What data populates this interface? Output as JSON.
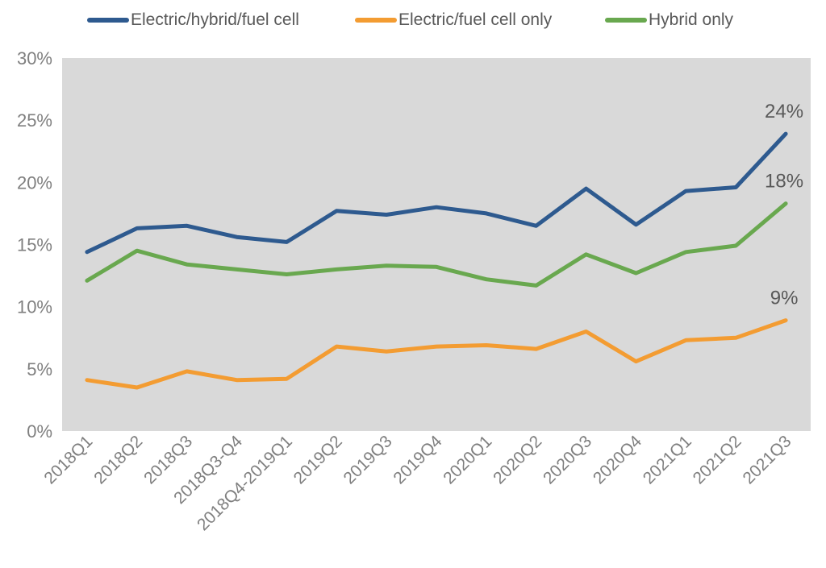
{
  "chart_data": {
    "type": "line",
    "title": "",
    "xlabel": "",
    "ylabel": "",
    "ylim": [
      0,
      0.3
    ],
    "yticks": [
      0,
      0.05,
      0.1,
      0.15,
      0.2,
      0.25,
      0.3
    ],
    "ytick_labels": [
      "0%",
      "5%",
      "10%",
      "15%",
      "20%",
      "25%",
      "30%"
    ],
    "grid": false,
    "legend_position": "top",
    "plot_background": "#d9d9d9",
    "categories": [
      "2018Q1",
      "2018Q2",
      "2018Q3",
      "2018Q3-Q4",
      "2018Q4-2019Q1",
      "2019Q2",
      "2019Q3",
      "2019Q4",
      "2020Q1",
      "2020Q2",
      "2020Q3",
      "2020Q4",
      "2021Q1",
      "2021Q2",
      "2021Q3"
    ],
    "series": [
      {
        "name": "Electric/hybrid/fuel cell",
        "color": "#2e5a8f",
        "values": [
          0.144,
          0.163,
          0.165,
          0.156,
          0.152,
          0.177,
          0.174,
          0.18,
          0.175,
          0.165,
          0.195,
          0.166,
          0.193,
          0.196,
          0.239
        ],
        "end_label": "24%"
      },
      {
        "name": "Electric/fuel cell only",
        "color": "#f39c32",
        "values": [
          0.041,
          0.035,
          0.048,
          0.041,
          0.042,
          0.068,
          0.064,
          0.068,
          0.069,
          0.066,
          0.08,
          0.056,
          0.073,
          0.075,
          0.089
        ],
        "end_label": "9%"
      },
      {
        "name": "Hybrid only",
        "color": "#69a84f",
        "values": [
          0.121,
          0.145,
          0.134,
          0.13,
          0.126,
          0.13,
          0.133,
          0.132,
          0.122,
          0.117,
          0.142,
          0.127,
          0.144,
          0.149,
          0.183
        ],
        "end_label": "18%"
      }
    ]
  }
}
